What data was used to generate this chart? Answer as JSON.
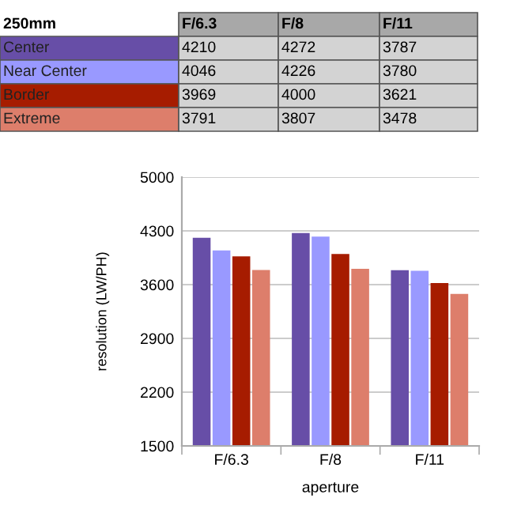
{
  "chart_data": {
    "type": "bar",
    "title": "250mm",
    "categories": [
      "F/6.3",
      "F/8",
      "F/11"
    ],
    "series": [
      {
        "name": "Center",
        "color": "#674ea7",
        "values": [
          4210,
          4272,
          3787
        ]
      },
      {
        "name": "Near Center",
        "color": "#9999ff",
        "values": [
          4046,
          4226,
          3780
        ]
      },
      {
        "name": "Border",
        "color": "#a61c00",
        "values": [
          3969,
          4000,
          3621
        ]
      },
      {
        "name": "Extreme",
        "color": "#dd7e6b",
        "values": [
          3791,
          3807,
          3478
        ]
      }
    ],
    "xlabel": "aperture",
    "ylabel": "resolution (LW/PH)",
    "ylim": [
      1500,
      5000
    ],
    "yticks": [
      1500,
      2200,
      2900,
      3600,
      4300,
      5000
    ],
    "grid": "y",
    "legend": "top",
    "data_labels": true
  }
}
